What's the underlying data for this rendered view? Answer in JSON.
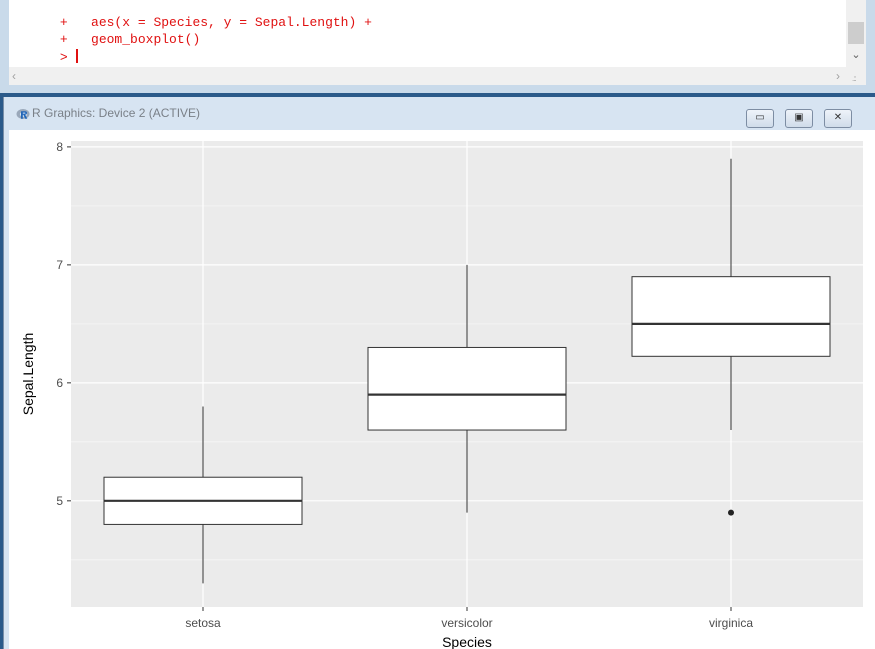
{
  "console": {
    "lines": [
      {
        "prompt": "+",
        "code": "aes(x = Species, y = Sepal.Length) +"
      },
      {
        "prompt": "+",
        "code": "geom_boxplot()"
      },
      {
        "prompt": ">",
        "code": ""
      }
    ]
  },
  "graphics_window": {
    "title": "R Graphics: Device 2 (ACTIVE)",
    "buttons": {
      "minimize": "▭",
      "restore": "▣",
      "close": "✕"
    }
  },
  "chart_data": {
    "type": "boxplot",
    "xlabel": "Species",
    "ylabel": "Sepal.Length",
    "ylim": [
      4.1,
      8.05
    ],
    "yticks": [
      5,
      6,
      7,
      8
    ],
    "categories": [
      "setosa",
      "versicolor",
      "virginica"
    ],
    "boxes": [
      {
        "category": "setosa",
        "min": 4.3,
        "q1": 4.8,
        "median": 5.0,
        "q3": 5.2,
        "max": 5.8,
        "outliers": []
      },
      {
        "category": "versicolor",
        "min": 4.9,
        "q1": 5.6,
        "median": 5.9,
        "q3": 6.3,
        "max": 7.0,
        "outliers": []
      },
      {
        "category": "virginica",
        "min": 5.6,
        "q1": 6.225,
        "median": 6.5,
        "q3": 6.9,
        "max": 7.9,
        "outliers": [
          4.9
        ]
      }
    ],
    "grid": true,
    "panel_background": "#ebebeb"
  }
}
